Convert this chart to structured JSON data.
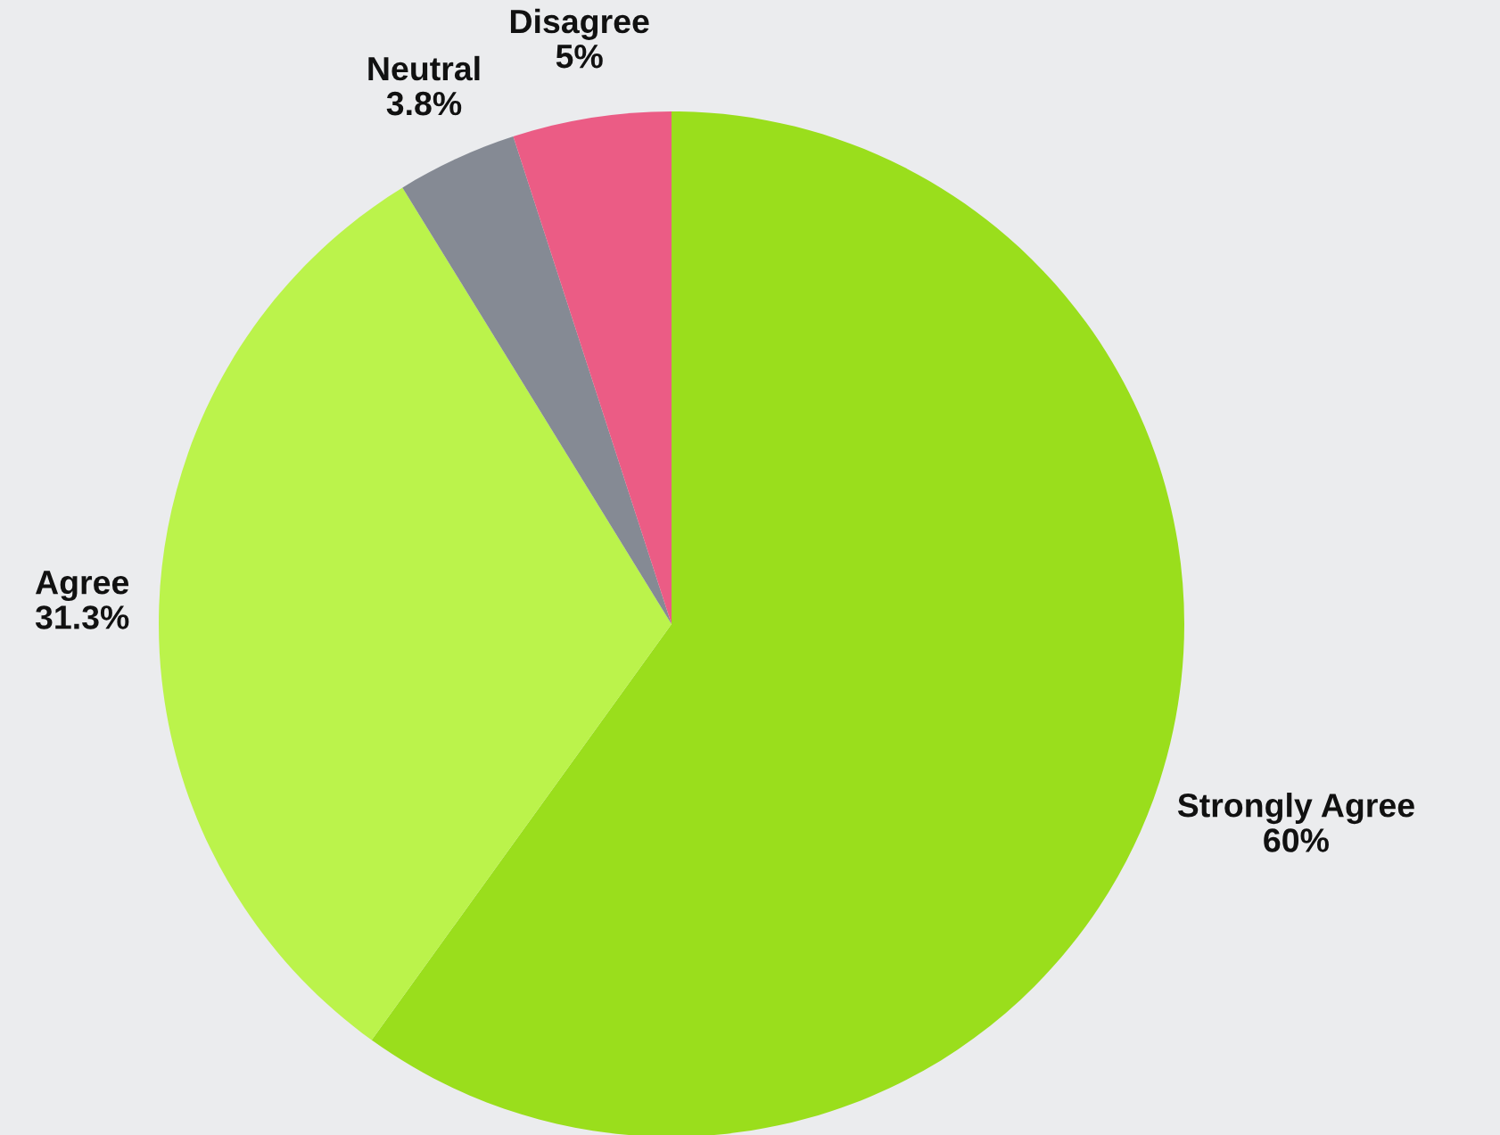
{
  "chart_data": {
    "type": "pie",
    "categories": [
      "Strongly Agree",
      "Agree",
      "Neutral",
      "Disagree"
    ],
    "values": [
      60,
      31.3,
      3.8,
      5
    ],
    "value_labels": [
      "60%",
      "31.3%",
      "3.8%",
      "5%"
    ],
    "colors": [
      "#9ade1c",
      "#bbf34b",
      "#858a94",
      "#eb5c85"
    ]
  }
}
